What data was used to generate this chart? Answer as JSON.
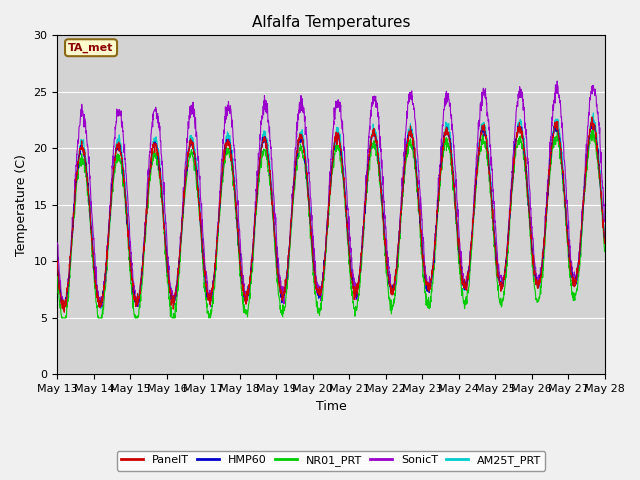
{
  "title": "Alfalfa Temperatures",
  "xlabel": "Time",
  "ylabel": "Temperature (C)",
  "ylim": [
    0,
    30
  ],
  "yticks": [
    0,
    5,
    10,
    15,
    20,
    25,
    30
  ],
  "annotation_text": "TA_met",
  "annotation_color": "#8B0000",
  "annotation_bg": "#FFFACD",
  "annotation_edge": "#8B6914",
  "bg_color": "#D3D3D3",
  "fig_color": "#F0F0F0",
  "series_colors": {
    "PanelT": "#CC0000",
    "HMP60": "#0000CC",
    "NR01_PRT": "#00CC00",
    "SonicT": "#9900CC",
    "AM25T_PRT": "#00CCCC"
  },
  "legend_labels": [
    "PanelT",
    "HMP60",
    "NR01_PRT",
    "SonicT",
    "AM25T_PRT"
  ],
  "x_tick_labels": [
    "May 13",
    "May 14",
    "May 15",
    "May 16",
    "May 17",
    "May 18",
    "May 19",
    "May 20",
    "May 21",
    "May 22",
    "May 23",
    "May 24",
    "May 25",
    "May 26",
    "May 27",
    "May 28"
  ],
  "n_days": 15,
  "pts_per_day": 144
}
